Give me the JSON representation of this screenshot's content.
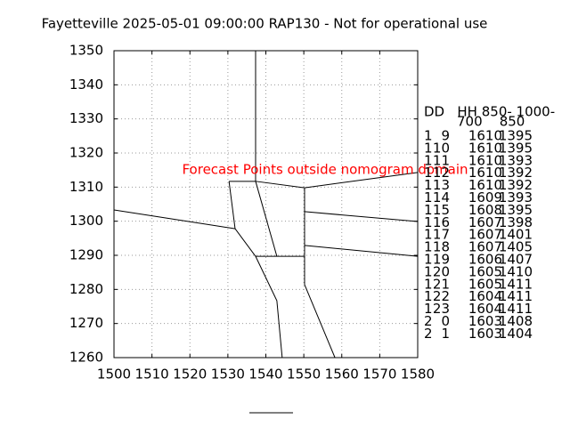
{
  "chart_data": {
    "type": "line",
    "title": "Fayetteville 2025-05-01 09:00:00 RAP130 - Not for operational use",
    "annotation": "Forecast Points outside nomogram domain",
    "color": "#000000",
    "annotation_color": "#ff0000",
    "grid": true,
    "xlim": [
      1500,
      1580
    ],
    "xticks": [
      1500,
      1510,
      1520,
      1530,
      1540,
      1550,
      1560,
      1570,
      1580
    ],
    "ylim": [
      1260,
      1350
    ],
    "yticks": [
      1260,
      1270,
      1280,
      1290,
      1300,
      1310,
      1320,
      1330,
      1340,
      1350
    ],
    "series": [
      {
        "x": [
          1537.3,
          1537.3
        ],
        "y": [
          1350,
          1311.7
        ]
      },
      {
        "x": [
          1530.3,
          1537.3
        ],
        "y": [
          1311.7,
          1311.7
        ]
      },
      {
        "x": [
          1537.3,
          1550.2,
          1580
        ],
        "y": [
          1311.7,
          1309.8,
          1314.3
        ]
      },
      {
        "x": [
          1500,
          1531.9
        ],
        "y": [
          1303.3,
          1297.8
        ]
      },
      {
        "x": [
          1530.3,
          1531.9,
          1537.3
        ],
        "y": [
          1311.7,
          1297.8,
          1289.7
        ]
      },
      {
        "x": [
          1537.3,
          1542.9
        ],
        "y": [
          1311.7,
          1289.7
        ]
      },
      {
        "x": [
          1537.3,
          1550.2
        ],
        "y": [
          1289.7,
          1289.7
        ]
      },
      {
        "x": [
          1550.2,
          1550.2
        ],
        "y": [
          1309.8,
          1281.4
        ]
      },
      {
        "x": [
          1550.2,
          1580
        ],
        "y": [
          1302.8,
          1299.9
        ]
      },
      {
        "x": [
          1550.2,
          1580
        ],
        "y": [
          1292.9,
          1289.7
        ]
      },
      {
        "x": [
          1537.3,
          1542.9,
          1544.3
        ],
        "y": [
          1289.7,
          1276.7,
          1260
        ]
      },
      {
        "x": [
          1550.2,
          1558.2
        ],
        "y": [
          1281.4,
          1260
        ]
      }
    ],
    "table": {
      "header": [
        "DD   HH 850- 1000-",
        "700    850"
      ],
      "rows": [
        [
          1,
          9,
          1610,
          1395
        ],
        [
          1,
          10,
          1610,
          1395
        ],
        [
          1,
          11,
          1610,
          1393
        ],
        [
          1,
          12,
          1610,
          1392
        ],
        [
          1,
          13,
          1610,
          1392
        ],
        [
          1,
          14,
          1609,
          1393
        ],
        [
          1,
          15,
          1608,
          1395
        ],
        [
          1,
          16,
          1607,
          1398
        ],
        [
          1,
          17,
          1607,
          1401
        ],
        [
          1,
          18,
          1607,
          1405
        ],
        [
          1,
          19,
          1606,
          1407
        ],
        [
          1,
          20,
          1605,
          1410
        ],
        [
          1,
          21,
          1605,
          1411
        ],
        [
          1,
          22,
          1604,
          1411
        ],
        [
          1,
          23,
          1604,
          1411
        ],
        [
          2,
          0,
          1603,
          1408
        ],
        [
          2,
          1,
          1603,
          1404
        ]
      ]
    }
  }
}
